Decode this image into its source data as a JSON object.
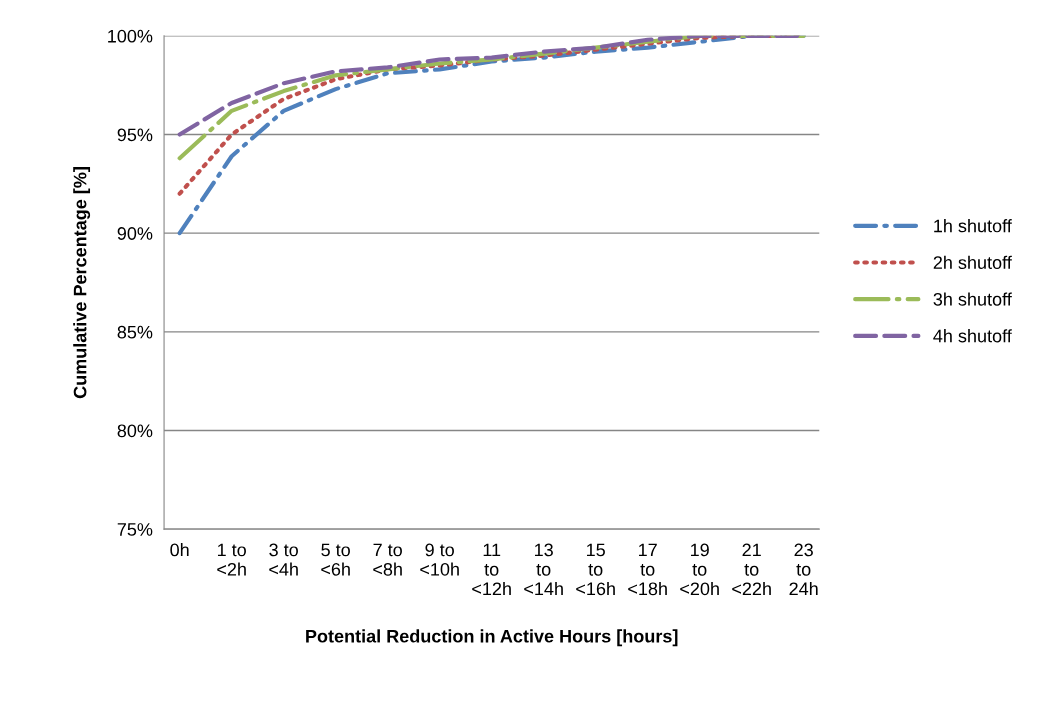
{
  "chart_data": {
    "type": "line",
    "xlabel": "Potential Reduction in Active Hours [hours]",
    "ylabel": "Cumulative Percentage [%]",
    "categories": [
      "0h",
      "1 to\n<2h",
      "3 to\n<4h",
      "5 to\n<6h",
      "7 to\n<8h",
      "9 to\n<10h",
      "11\nto\n<12h",
      "13\nto\n<14h",
      "15\nto\n<16h",
      "17\nto\n<18h",
      "19\nto\n<20h",
      "21\nto\n<22h",
      "23\nto\n24h"
    ],
    "series": [
      {
        "name": "1h shutoff",
        "color": "#4f81bd",
        "line_style": "dashdot",
        "values": [
          90.0,
          93.9,
          96.2,
          97.3,
          98.1,
          98.3,
          98.7,
          98.9,
          99.2,
          99.4,
          99.7,
          100,
          100
        ]
      },
      {
        "name": "2h shutoff",
        "color": "#c0504d",
        "line_style": "dotted",
        "values": [
          92.0,
          95.0,
          96.8,
          97.8,
          98.3,
          98.5,
          98.8,
          99.0,
          99.3,
          99.6,
          99.9,
          100,
          100
        ]
      },
      {
        "name": "3h shutoff",
        "color": "#9bbb59",
        "line_style": "longdashdot",
        "values": [
          93.8,
          96.2,
          97.2,
          98.0,
          98.3,
          98.6,
          98.8,
          99.1,
          99.4,
          99.7,
          100,
          100,
          100
        ]
      },
      {
        "name": "4h shutoff",
        "color": "#8064a2",
        "line_style": "dashed",
        "values": [
          95.0,
          96.6,
          97.6,
          98.2,
          98.4,
          98.8,
          98.9,
          99.2,
          99.4,
          99.8,
          100,
          100,
          100
        ]
      }
    ],
    "ylim": [
      75,
      100
    ],
    "yticks": [
      {
        "value": 75,
        "label": "75%"
      },
      {
        "value": 80,
        "label": "80%"
      },
      {
        "value": 85,
        "label": "85%"
      },
      {
        "value": 90,
        "label": "90%"
      },
      {
        "value": 95,
        "label": "95%"
      },
      {
        "value": 100,
        "label": "100%"
      }
    ],
    "grid": "y",
    "legend": "right",
    "marker": "none"
  }
}
